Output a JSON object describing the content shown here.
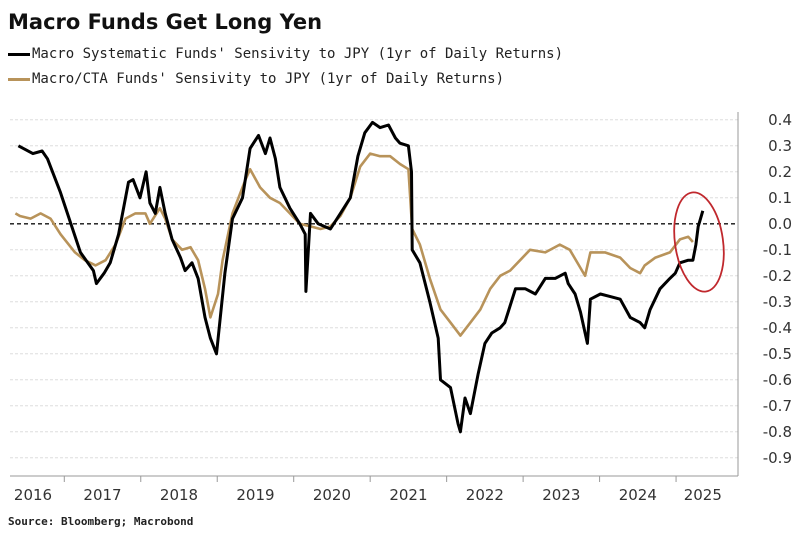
{
  "chart_data": {
    "type": "line",
    "title": "Macro Funds Get Long Yen",
    "xlabel": "",
    "ylabel": "",
    "xlim": [
      2016.29,
      2025.81
    ],
    "ylim": [
      -0.97,
      0.43
    ],
    "x_ticks": [
      "2016",
      "2017",
      "2018",
      "2019",
      "2020",
      "2021",
      "2022",
      "2023",
      "2024",
      "2025"
    ],
    "y_ticks": [
      0.4,
      0.3,
      0.2,
      0.1,
      0.0,
      -0.1,
      -0.2,
      -0.3,
      -0.4,
      -0.5,
      -0.6,
      -0.7,
      -0.8,
      -0.9
    ],
    "y_tick_labels": [
      "0.4",
      "0.3",
      "0.2",
      "0.1",
      "0.0",
      "-0.1",
      "-0.2",
      "-0.3",
      "-0.4",
      "-0.5",
      "-0.6",
      "-0.7",
      "-0.8",
      "-0.9"
    ],
    "grid": true,
    "reference_line": 0.0,
    "legend_position": "top-left",
    "annotation": "red ellipse highlighting latest values (2025)",
    "series": [
      {
        "name": "Macro Systematic Funds' Sensivity to JPY (1yr of Daily Returns)",
        "color": "#000000",
        "points": [
          [
            2016.4,
            0.3
          ],
          [
            2016.59,
            0.27
          ],
          [
            2016.71,
            0.28
          ],
          [
            2016.78,
            0.25
          ],
          [
            2016.95,
            0.12
          ],
          [
            2017.21,
            -0.11
          ],
          [
            2017.38,
            -0.18
          ],
          [
            2017.42,
            -0.23
          ],
          [
            2017.52,
            -0.19
          ],
          [
            2017.6,
            -0.15
          ],
          [
            2017.71,
            -0.04
          ],
          [
            2017.84,
            0.16
          ],
          [
            2017.9,
            0.17
          ],
          [
            2017.99,
            0.1
          ],
          [
            2018.07,
            0.2
          ],
          [
            2018.12,
            0.08
          ],
          [
            2018.19,
            0.04
          ],
          [
            2018.25,
            0.14
          ],
          [
            2018.32,
            0.04
          ],
          [
            2018.41,
            -0.06
          ],
          [
            2018.52,
            -0.13
          ],
          [
            2018.58,
            -0.18
          ],
          [
            2018.67,
            -0.15
          ],
          [
            2018.75,
            -0.21
          ],
          [
            2018.84,
            -0.36
          ],
          [
            2018.91,
            -0.44
          ],
          [
            2018.99,
            -0.5
          ],
          [
            2019.04,
            -0.36
          ],
          [
            2019.1,
            -0.19
          ],
          [
            2019.2,
            0.02
          ],
          [
            2019.33,
            0.1
          ],
          [
            2019.43,
            0.29
          ],
          [
            2019.54,
            0.34
          ],
          [
            2019.63,
            0.27
          ],
          [
            2019.69,
            0.33
          ],
          [
            2019.76,
            0.25
          ],
          [
            2019.82,
            0.14
          ],
          [
            2019.95,
            0.06
          ],
          [
            2020.08,
            0.0
          ],
          [
            2020.15,
            -0.04
          ],
          [
            2020.16,
            -0.26
          ],
          [
            2020.22,
            0.04
          ],
          [
            2020.32,
            0.0
          ],
          [
            2020.48,
            -0.02
          ],
          [
            2020.61,
            0.04
          ],
          [
            2020.74,
            0.1
          ],
          [
            2020.84,
            0.26
          ],
          [
            2020.93,
            0.35
          ],
          [
            2021.03,
            0.39
          ],
          [
            2021.13,
            0.37
          ],
          [
            2021.24,
            0.38
          ],
          [
            2021.33,
            0.33
          ],
          [
            2021.39,
            0.31
          ],
          [
            2021.5,
            0.3
          ],
          [
            2021.54,
            0.2
          ],
          [
            2021.55,
            -0.1
          ],
          [
            2021.65,
            -0.15
          ],
          [
            2021.78,
            -0.3
          ],
          [
            2021.89,
            -0.44
          ],
          [
            2021.92,
            -0.6
          ],
          [
            2022.05,
            -0.63
          ],
          [
            2022.15,
            -0.77
          ],
          [
            2022.18,
            -0.8
          ],
          [
            2022.24,
            -0.67
          ],
          [
            2022.31,
            -0.73
          ],
          [
            2022.41,
            -0.58
          ],
          [
            2022.5,
            -0.46
          ],
          [
            2022.59,
            -0.42
          ],
          [
            2022.7,
            -0.4
          ],
          [
            2022.76,
            -0.38
          ],
          [
            2022.9,
            -0.25
          ],
          [
            2023.03,
            -0.25
          ],
          [
            2023.16,
            -0.27
          ],
          [
            2023.29,
            -0.21
          ],
          [
            2023.42,
            -0.21
          ],
          [
            2023.55,
            -0.19
          ],
          [
            2023.59,
            -0.23
          ],
          [
            2023.68,
            -0.27
          ],
          [
            2023.75,
            -0.34
          ],
          [
            2023.84,
            -0.46
          ],
          [
            2023.88,
            -0.29
          ],
          [
            2024.01,
            -0.27
          ],
          [
            2024.14,
            -0.28
          ],
          [
            2024.27,
            -0.29
          ],
          [
            2024.4,
            -0.36
          ],
          [
            2024.53,
            -0.38
          ],
          [
            2024.59,
            -0.4
          ],
          [
            2024.66,
            -0.33
          ],
          [
            2024.79,
            -0.25
          ],
          [
            2024.92,
            -0.21
          ],
          [
            2024.99,
            -0.19
          ],
          [
            2025.05,
            -0.15
          ],
          [
            2025.16,
            -0.14
          ],
          [
            2025.22,
            -0.14
          ],
          [
            2025.26,
            -0.08
          ],
          [
            2025.29,
            -0.01
          ],
          [
            2025.31,
            0.01
          ],
          [
            2025.35,
            0.05
          ]
        ]
      },
      {
        "name": "Macro/CTA Funds' Sensivity to JPY (1yr of Daily Returns)",
        "color": "#b8935a",
        "points": [
          [
            2016.36,
            0.04
          ],
          [
            2016.42,
            0.03
          ],
          [
            2016.56,
            0.02
          ],
          [
            2016.69,
            0.04
          ],
          [
            2016.82,
            0.02
          ],
          [
            2016.95,
            -0.04
          ],
          [
            2017.14,
            -0.11
          ],
          [
            2017.27,
            -0.14
          ],
          [
            2017.41,
            -0.16
          ],
          [
            2017.54,
            -0.14
          ],
          [
            2017.67,
            -0.08
          ],
          [
            2017.8,
            0.02
          ],
          [
            2017.93,
            0.04
          ],
          [
            2018.06,
            0.04
          ],
          [
            2018.12,
            0.0
          ],
          [
            2018.25,
            0.06
          ],
          [
            2018.32,
            0.02
          ],
          [
            2018.41,
            -0.06
          ],
          [
            2018.54,
            -0.1
          ],
          [
            2018.65,
            -0.09
          ],
          [
            2018.75,
            -0.14
          ],
          [
            2018.84,
            -0.25
          ],
          [
            2018.91,
            -0.36
          ],
          [
            2019.01,
            -0.27
          ],
          [
            2019.07,
            -0.14
          ],
          [
            2019.2,
            0.04
          ],
          [
            2019.37,
            0.17
          ],
          [
            2019.43,
            0.21
          ],
          [
            2019.56,
            0.14
          ],
          [
            2019.69,
            0.1
          ],
          [
            2019.82,
            0.08
          ],
          [
            2019.95,
            0.04
          ],
          [
            2020.08,
            0.0
          ],
          [
            2020.22,
            -0.01
          ],
          [
            2020.35,
            -0.02
          ],
          [
            2020.48,
            -0.01
          ],
          [
            2020.61,
            0.03
          ],
          [
            2020.74,
            0.1
          ],
          [
            2020.87,
            0.22
          ],
          [
            2021.0,
            0.27
          ],
          [
            2021.13,
            0.26
          ],
          [
            2021.26,
            0.26
          ],
          [
            2021.39,
            0.23
          ],
          [
            2021.5,
            0.21
          ],
          [
            2021.55,
            -0.02
          ],
          [
            2021.65,
            -0.08
          ],
          [
            2021.78,
            -0.21
          ],
          [
            2021.92,
            -0.33
          ],
          [
            2022.05,
            -0.38
          ],
          [
            2022.18,
            -0.43
          ],
          [
            2022.31,
            -0.38
          ],
          [
            2022.44,
            -0.33
          ],
          [
            2022.57,
            -0.25
          ],
          [
            2022.7,
            -0.2
          ],
          [
            2022.83,
            -0.18
          ],
          [
            2022.96,
            -0.14
          ],
          [
            2023.09,
            -0.1
          ],
          [
            2023.29,
            -0.11
          ],
          [
            2023.48,
            -0.08
          ],
          [
            2023.61,
            -0.1
          ],
          [
            2023.75,
            -0.17
          ],
          [
            2023.81,
            -0.2
          ],
          [
            2023.88,
            -0.11
          ],
          [
            2024.07,
            -0.11
          ],
          [
            2024.27,
            -0.13
          ],
          [
            2024.4,
            -0.17
          ],
          [
            2024.53,
            -0.19
          ],
          [
            2024.59,
            -0.16
          ],
          [
            2024.73,
            -0.13
          ],
          [
            2024.92,
            -0.11
          ],
          [
            2025.05,
            -0.06
          ],
          [
            2025.16,
            -0.05
          ],
          [
            2025.22,
            -0.07
          ]
        ]
      }
    ]
  },
  "legend": [
    "Macro Systematic Funds' Sensivity to JPY (1yr of Daily Returns)",
    "Macro/CTA Funds' Sensivity to JPY (1yr of Daily Returns)"
  ],
  "source": "Source: Bloomberg; Macrobond",
  "colors": {
    "black_series": "#000000",
    "gold_series": "#b8935a",
    "highlight": "#c0282d",
    "grid": "#dddddd"
  }
}
